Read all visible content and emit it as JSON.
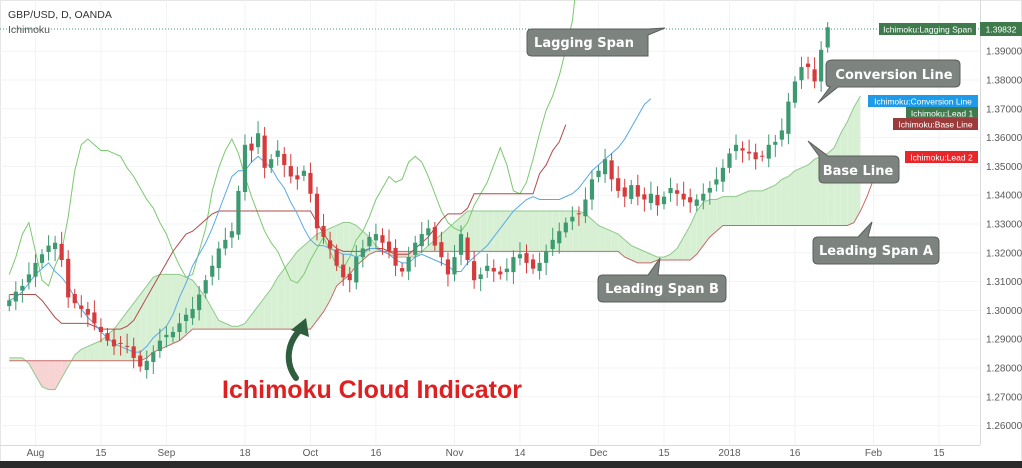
{
  "header": {
    "symbol_line": "GBP/USD, D, OANDA",
    "indicator_name": "Ichimoku"
  },
  "headline": "Ichimoku Cloud Indicator",
  "callouts": {
    "lagging_span": "Lagging Span",
    "conversion_line": "Conversion Line",
    "base_line": "Base Line",
    "leading_span_a": "Leading Span A",
    "leading_span_b": "Leading Span B"
  },
  "price_tags": {
    "last_price": "1.39832",
    "lagging": "Ichimoku:Lagging Span",
    "conversion": "Ichimoku:Conversion Line",
    "lead1": "Ichimoku:Lead 1",
    "base": "Ichimoku:Base Line",
    "lead2": "Ichimoku:Lead 2"
  },
  "colors": {
    "bull": "#3d9970",
    "bear": "#d63a3a",
    "conversion": "#5aa9e6",
    "base": "#b24a4a",
    "lagging": "#7bc96f",
    "cloud_bull": "#d7f0d4",
    "cloud_bear": "#f8d3d3",
    "callout_bg": "#7d837e",
    "headline": "#e02020",
    "arrow": "#2f5e3e"
  },
  "chart_data": {
    "type": "candlestick",
    "symbol": "GBP/USD",
    "timeframe": "D",
    "ylim": [
      1.255,
      1.405
    ],
    "y_ticks": [
      "1.26000",
      "1.27000",
      "1.28000",
      "1.29000",
      "1.30000",
      "1.31000",
      "1.32000",
      "1.33000",
      "1.34000",
      "1.35000",
      "1.36000",
      "1.37000",
      "1.38000",
      "1.39000"
    ],
    "x_ticks": [
      {
        "label": "Aug",
        "day": 4
      },
      {
        "label": "15",
        "day": 14
      },
      {
        "label": "Sep",
        "day": 24
      },
      {
        "label": "18",
        "day": 36
      },
      {
        "label": "Oct",
        "day": 46
      },
      {
        "label": "16",
        "day": 56
      },
      {
        "label": "Nov",
        "day": 68
      },
      {
        "label": "14",
        "day": 78
      },
      {
        "label": "Dec",
        "day": 90
      },
      {
        "label": "15",
        "day": 100
      },
      {
        "label": "2018",
        "day": 110
      },
      {
        "label": "16",
        "day": 120
      },
      {
        "label": "Feb",
        "day": 132
      },
      {
        "label": "15",
        "day": 142
      }
    ],
    "days_visible": 148,
    "close": [
      1.3035,
      1.3065,
      1.3085,
      1.3125,
      1.3165,
      1.3195,
      1.3225,
      1.3235,
      1.3175,
      1.3045,
      1.3025,
      1.3005,
      1.2985,
      1.2955,
      1.2925,
      1.2895,
      1.2875,
      1.2885,
      1.2875,
      1.2835,
      1.2805,
      1.2825,
      1.2855,
      1.2895,
      1.2915,
      1.2925,
      1.2955,
      1.2985,
      1.3005,
      1.3055,
      1.3105,
      1.3155,
      1.3215,
      1.3245,
      1.3275,
      1.3415,
      1.3575,
      1.3555,
      1.3615,
      1.3495,
      1.3525,
      1.3555,
      1.3505,
      1.3465,
      1.3455,
      1.3485,
      1.3405,
      1.3285,
      1.3255,
      1.3215,
      1.3155,
      1.3115,
      1.3105,
      1.3185,
      1.3215,
      1.3255,
      1.3265,
      1.3235,
      1.3205,
      1.3155,
      1.3135,
      1.3185,
      1.3235,
      1.3265,
      1.3285,
      1.3225,
      1.3185,
      1.3125,
      1.3185,
      1.3265,
      1.3175,
      1.3105,
      1.3125,
      1.3155,
      1.3135,
      1.3125,
      1.3145,
      1.3185,
      1.3195,
      1.3165,
      1.3145,
      1.3165,
      1.3205,
      1.3245,
      1.3275,
      1.3305,
      1.3325,
      1.3335,
      1.3385,
      1.3455,
      1.3485,
      1.3525,
      1.3455,
      1.3415,
      1.3395,
      1.3435,
      1.3395,
      1.3385,
      1.3405,
      1.3365,
      1.3395,
      1.3425,
      1.3405,
      1.3385,
      1.3375,
      1.3385,
      1.3405,
      1.3425,
      1.3455,
      1.3495,
      1.3545,
      1.3575,
      1.3555,
      1.3545,
      1.3525,
      1.3535,
      1.3575,
      1.3585,
      1.3625,
      1.3725,
      1.3795,
      1.3845,
      1.3845,
      1.3795,
      1.3905,
      1.3983
    ],
    "conversion_line": [
      1.3035,
      1.3045,
      1.3065,
      1.3095,
      1.3125,
      1.3145,
      1.3165,
      1.3135,
      1.3115,
      1.3085,
      1.3045,
      1.3005,
      1.2975,
      1.2955,
      1.2925,
      1.2905,
      1.2885,
      1.2875,
      1.2865,
      1.2855,
      1.2855,
      1.2875,
      1.2905,
      1.2925,
      1.2945,
      1.2985,
      1.3045,
      1.3095,
      1.3155,
      1.3195,
      1.3235,
      1.3285,
      1.3345,
      1.3405,
      1.3465,
      1.3485,
      1.3485,
      1.3515,
      1.3535,
      1.3515,
      1.3495,
      1.3455,
      1.3425,
      1.3375,
      1.3335,
      1.3285,
      1.3245,
      1.3225,
      1.3225,
      1.3215,
      1.3205,
      1.3195,
      1.3195,
      1.3185,
      1.3195,
      1.3215,
      1.3215,
      1.3205,
      1.3195,
      1.3175,
      1.3165,
      1.3165,
      1.3185,
      1.3195,
      1.3185,
      1.3175,
      1.3165,
      1.3155,
      1.3135,
      1.3135,
      1.3165,
      1.3185,
      1.3205,
      1.3225,
      1.3255,
      1.3285,
      1.3315,
      1.3345,
      1.3365,
      1.3385,
      1.3395,
      1.3385,
      1.3385,
      1.3385,
      1.3385,
      1.3395,
      1.3405,
      1.3425,
      1.3455,
      1.3485,
      1.3505,
      1.3525,
      1.3545,
      1.3565,
      1.3595,
      1.3635,
      1.3675,
      1.3715,
      1.3735
    ],
    "base_line": [
      1.3055,
      1.3055,
      1.3055,
      1.3055,
      1.3055,
      1.3035,
      1.3005,
      1.2975,
      1.2955,
      1.2955,
      1.2955,
      1.2955,
      1.2955,
      1.2945,
      1.2935,
      1.2935,
      1.2935,
      1.2935,
      1.2945,
      1.2965,
      1.3005,
      1.3045,
      1.3085,
      1.3125,
      1.3165,
      1.3205,
      1.3235,
      1.3265,
      1.3275,
      1.3295,
      1.3315,
      1.3335,
      1.3345,
      1.3345,
      1.3345,
      1.3345,
      1.3345,
      1.3345,
      1.3345,
      1.3345,
      1.3345,
      1.3345,
      1.3345,
      1.3345,
      1.3345,
      1.3345,
      1.3345,
      1.3305,
      1.3265,
      1.3235,
      1.3215,
      1.3205,
      1.3205,
      1.3205,
      1.3205,
      1.3215,
      1.3215,
      1.3215,
      1.3205,
      1.3195,
      1.3195,
      1.3195,
      1.3215,
      1.3235,
      1.3255,
      1.3285,
      1.3315,
      1.3335,
      1.3335,
      1.3335,
      1.3355,
      1.3405,
      1.3405,
      1.3405,
      1.3405,
      1.3405,
      1.3405,
      1.3405,
      1.3405,
      1.3405,
      1.3405,
      1.3475,
      1.3505,
      1.3555,
      1.3585,
      1.3645
    ],
    "lagging_span": [
      1.3125,
      1.3185,
      1.3265,
      1.3305,
      1.3205,
      1.3105,
      1.3085,
      1.3155,
      1.3205,
      1.3325,
      1.3485,
      1.3575,
      1.3595,
      1.3575,
      1.3555,
      1.3555,
      1.3545,
      1.3535,
      1.3495,
      1.3465,
      1.3425,
      1.3385,
      1.3355,
      1.3305,
      1.3265,
      1.3205,
      1.3155,
      1.3115,
      1.3125,
      1.3205,
      1.3285,
      1.3415,
      1.3495,
      1.3555,
      1.3595,
      1.3545,
      1.3465,
      1.3395,
      1.3335,
      1.3275,
      1.3235,
      1.3205,
      1.3155,
      1.3105,
      1.3095,
      1.3125,
      1.3175,
      1.3215,
      1.3255,
      1.3205,
      1.3155,
      1.3145,
      1.3185,
      1.3245,
      1.3275,
      1.3325,
      1.3385,
      1.3425,
      1.3465,
      1.3445,
      1.3455,
      1.3515,
      1.3535,
      1.3515,
      1.3465,
      1.3405,
      1.3345,
      1.3305,
      1.3285,
      1.3275,
      1.3305,
      1.3365,
      1.3405,
      1.3445,
      1.3505,
      1.3565,
      1.3505,
      1.3415,
      1.3405,
      1.3445,
      1.3525,
      1.3615,
      1.3695,
      1.3745,
      1.3815,
      1.3905,
      1.4005,
      1.4205
    ],
    "leading_span_a": [
      1.2835,
      1.2835,
      1.2835,
      1.2815,
      1.2775,
      1.2735,
      1.2725,
      1.2725,
      1.2765,
      1.2805,
      1.2845,
      1.2865,
      1.2875,
      1.2885,
      1.2895,
      1.2915,
      1.2935,
      1.2965,
      1.2995,
      1.3025,
      1.3055,
      1.3085,
      1.3115,
      1.3125,
      1.3125,
      1.3125,
      1.3125,
      1.3115,
      1.3105,
      1.3075,
      1.3045,
      1.3005,
      1.2965,
      1.2955,
      1.2945,
      1.2945,
      1.2955,
      1.2985,
      1.3015,
      1.3045,
      1.3075,
      1.3115,
      1.3145,
      1.3175,
      1.3205,
      1.3225,
      1.3245,
      1.3265,
      1.3275,
      1.3285,
      1.3295,
      1.3305,
      1.3305,
      1.3295,
      1.3275,
      1.3255,
      1.3225,
      1.3205,
      1.3195,
      1.3185,
      1.3185,
      1.3185,
      1.3185,
      1.3205,
      1.3225,
      1.3245,
      1.3265,
      1.3285,
      1.3305,
      1.3325,
      1.3345,
      1.3345,
      1.3345,
      1.3345,
      1.3345,
      1.3345,
      1.3345,
      1.3345,
      1.3345,
      1.3345,
      1.3345,
      1.3345,
      1.3345,
      1.3345,
      1.3345,
      1.3345,
      1.3345,
      1.3345,
      1.3335,
      1.3315,
      1.3295,
      1.3285,
      1.3275,
      1.3265,
      1.3245,
      1.3225,
      1.3215,
      1.3205,
      1.3195,
      1.3185,
      1.3185,
      1.3195,
      1.3215,
      1.3255,
      1.3295,
      1.3345,
      1.3375,
      1.3385,
      1.3385,
      1.3395,
      1.3395,
      1.3395,
      1.3405,
      1.3415,
      1.3415,
      1.3415,
      1.3425,
      1.3435,
      1.3455,
      1.3465,
      1.3485,
      1.3495,
      1.3505,
      1.3525,
      1.3535,
      1.3545,
      1.3565,
      1.3615,
      1.3655,
      1.3705,
      1.3745
    ],
    "leading_span_b": [
      1.2825,
      1.2825,
      1.2825,
      1.2825,
      1.2825,
      1.2825,
      1.2825,
      1.2825,
      1.2825,
      1.2825,
      1.2825,
      1.2825,
      1.2825,
      1.2825,
      1.2825,
      1.2825,
      1.2825,
      1.2825,
      1.2825,
      1.2825,
      1.2825,
      1.2835,
      1.2855,
      1.2865,
      1.2875,
      1.2885,
      1.2895,
      1.2915,
      1.2935,
      1.2935,
      1.2935,
      1.2935,
      1.2935,
      1.2935,
      1.2935,
      1.2935,
      1.2935,
      1.2935,
      1.2935,
      1.2935,
      1.2935,
      1.2935,
      1.2935,
      1.2935,
      1.2935,
      1.2935,
      1.2935,
      1.2965,
      1.2995,
      1.3035,
      1.3085,
      1.3105,
      1.3125,
      1.3155,
      1.3175,
      1.3195,
      1.3205,
      1.3205,
      1.3205,
      1.3205,
      1.3205,
      1.3205,
      1.3205,
      1.3205,
      1.3205,
      1.3205,
      1.3205,
      1.3205,
      1.3205,
      1.3205,
      1.3205,
      1.3205,
      1.3205,
      1.3205,
      1.3205,
      1.3205,
      1.3205,
      1.3205,
      1.3205,
      1.3205,
      1.3205,
      1.3205,
      1.3205,
      1.3205,
      1.3205,
      1.3205,
      1.3205,
      1.3205,
      1.3205,
      1.3205,
      1.3205,
      1.3205,
      1.3205,
      1.3205,
      1.3185,
      1.3175,
      1.3165,
      1.3165,
      1.3165,
      1.3175,
      1.3175,
      1.3175,
      1.3175,
      1.3175,
      1.3175,
      1.3195,
      1.3225,
      1.3255,
      1.3275,
      1.3295,
      1.3295,
      1.3295,
      1.3295,
      1.3295,
      1.3295,
      1.3295,
      1.3295,
      1.3295,
      1.3295,
      1.3295,
      1.3295,
      1.3295,
      1.3295,
      1.3295,
      1.3295,
      1.3295,
      1.3295,
      1.3295,
      1.3295,
      1.3305,
      1.3345,
      1.3395,
      1.3455,
      1.3505
    ]
  }
}
